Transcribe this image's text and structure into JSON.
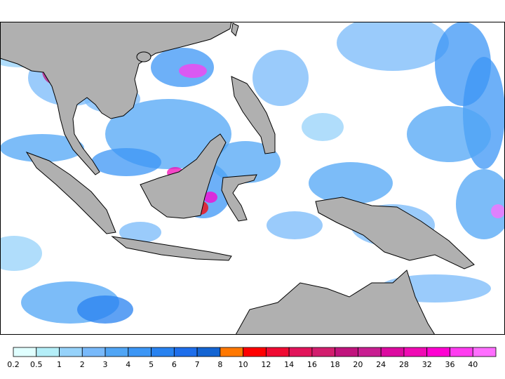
{
  "map": {
    "land_color": "#b0b0b0",
    "ocean_color": "#ffffff",
    "coast_color": "#000000"
  },
  "legend": {
    "colors": [
      "#e0ffff",
      "#b4eef8",
      "#96d2fa",
      "#78b9fa",
      "#50a5f5",
      "#3c96f5",
      "#2882f0",
      "#1e6eeb",
      "#1464d2",
      "#ff7800",
      "#ff0000",
      "#f00a32",
      "#e1145a",
      "#d21e6e",
      "#c0147d",
      "#c81e91",
      "#dc0aa0",
      "#f00ab4",
      "#ff00d2",
      "#ff3cf0",
      "#ff6eff"
    ],
    "labels": [
      "0.2",
      "0.5",
      "1",
      "2",
      "3",
      "4",
      "5",
      "6",
      "7",
      "8",
      "10",
      "12",
      "14",
      "16",
      "18",
      "20",
      "24",
      "28",
      "32",
      "36",
      "40"
    ]
  }
}
